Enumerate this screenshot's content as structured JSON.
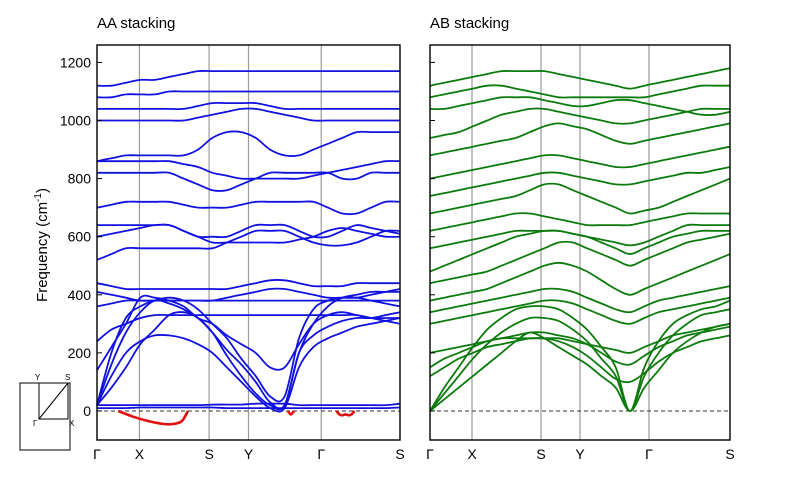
{
  "chart_data": {
    "type": "line",
    "ylabel": "Frequency (cm",
    "ylabel_sup": "-1",
    "ylabel_close": ")",
    "ylim": [
      -100,
      1260
    ],
    "yticks": [
      0,
      200,
      400,
      600,
      800,
      1000,
      1200
    ],
    "kpoints": [
      "Γ",
      "X",
      "S",
      "Y",
      "Γ",
      "S"
    ],
    "inset": {
      "labels": [
        "Y",
        "S",
        "Γ",
        "X"
      ]
    },
    "panels": [
      {
        "title": "AA stacking",
        "color": "#1010e0",
        "imaginary_color": "#e01010",
        "bands": [
          [
            10,
            10,
            10,
            12,
            12,
            12,
            12,
            12,
            12,
            10,
            10,
            10,
            10,
            10,
            10,
            10,
            10,
            10,
            10,
            10,
            10,
            12
          ],
          [
            20,
            20,
            20,
            20,
            20,
            20,
            20,
            20,
            22,
            22,
            22,
            25,
            25,
            25,
            20,
            20,
            20,
            20,
            20,
            20,
            20,
            25
          ],
          [
            20,
            80,
            150,
            230,
            280,
            330,
            340,
            320,
            270,
            190,
            120,
            60,
            20,
            20,
            200,
            260,
            290,
            310,
            320,
            320,
            330,
            340
          ],
          [
            20,
            120,
            200,
            240,
            260,
            260,
            250,
            230,
            200,
            150,
            100,
            50,
            10,
            10,
            150,
            220,
            250,
            270,
            290,
            300,
            310,
            320
          ],
          [
            20,
            160,
            270,
            340,
            380,
            370,
            350,
            320,
            270,
            210,
            160,
            100,
            30,
            20,
            200,
            300,
            360,
            390,
            400,
            410,
            410,
            410
          ],
          [
            20,
            200,
            320,
            360,
            380,
            390,
            380,
            350,
            300,
            250,
            180,
            120,
            50,
            50,
            250,
            350,
            380,
            390,
            390,
            380,
            370,
            360
          ],
          [
            140,
            220,
            300,
            390,
            390,
            380,
            360,
            320,
            300,
            260,
            230,
            200,
            150,
            150,
            230,
            300,
            330,
            340,
            330,
            320,
            310,
            300
          ],
          [
            240,
            280,
            300,
            320,
            330,
            330,
            330,
            330,
            330,
            330,
            330,
            330,
            330,
            330,
            330,
            330,
            330,
            330,
            330,
            320,
            320,
            320
          ],
          [
            360,
            370,
            380,
            380,
            380,
            380,
            380,
            380,
            380,
            380,
            380,
            380,
            380,
            380,
            380,
            380,
            380,
            380,
            380,
            380,
            380,
            380
          ],
          [
            410,
            400,
            390,
            380,
            380,
            380,
            380,
            380,
            380,
            390,
            400,
            410,
            420,
            420,
            410,
            400,
            390,
            390,
            390,
            400,
            410,
            420
          ],
          [
            440,
            430,
            420,
            420,
            420,
            420,
            420,
            420,
            420,
            420,
            430,
            440,
            450,
            450,
            440,
            430,
            430,
            430,
            440,
            440,
            440,
            440
          ],
          [
            520,
            540,
            560,
            560,
            560,
            560,
            560,
            560,
            560,
            580,
            600,
            620,
            620,
            620,
            600,
            580,
            570,
            570,
            580,
            600,
            620,
            620
          ],
          [
            600,
            610,
            620,
            630,
            640,
            640,
            620,
            600,
            580,
            580,
            580,
            580,
            580,
            580,
            590,
            600,
            620,
            630,
            620,
            610,
            600,
            600
          ],
          [
            640,
            640,
            640,
            640,
            640,
            640,
            620,
            600,
            600,
            600,
            620,
            640,
            640,
            640,
            620,
            600,
            600,
            620,
            640,
            630,
            620,
            610
          ],
          [
            700,
            710,
            720,
            720,
            720,
            720,
            710,
            700,
            700,
            700,
            710,
            720,
            720,
            720,
            720,
            720,
            700,
            680,
            680,
            700,
            720,
            720
          ],
          [
            820,
            820,
            820,
            820,
            820,
            820,
            800,
            780,
            760,
            760,
            780,
            800,
            820,
            820,
            820,
            820,
            820,
            800,
            800,
            820,
            820,
            820
          ],
          [
            860,
            860,
            860,
            860,
            860,
            860,
            850,
            840,
            820,
            810,
            800,
            800,
            800,
            800,
            800,
            810,
            820,
            830,
            840,
            850,
            860,
            860
          ],
          [
            860,
            870,
            880,
            880,
            880,
            880,
            880,
            900,
            940,
            960,
            960,
            940,
            900,
            880,
            880,
            900,
            920,
            940,
            960,
            960,
            960,
            960
          ],
          [
            1000,
            1000,
            1000,
            1000,
            1000,
            1000,
            1000,
            1010,
            1020,
            1030,
            1040,
            1040,
            1030,
            1020,
            1010,
            1000,
            1000,
            1000,
            1000,
            1000,
            1000,
            1000
          ],
          [
            1040,
            1040,
            1040,
            1040,
            1040,
            1040,
            1040,
            1050,
            1060,
            1060,
            1060,
            1060,
            1050,
            1040,
            1040,
            1040,
            1040,
            1040,
            1040,
            1040,
            1040,
            1040
          ],
          [
            1080,
            1080,
            1090,
            1090,
            1090,
            1100,
            1100,
            1100,
            1100,
            1100,
            1100,
            1100,
            1100,
            1100,
            1100,
            1100,
            1100,
            1100,
            1100,
            1100,
            1100,
            1100
          ],
          [
            1120,
            1120,
            1130,
            1140,
            1140,
            1150,
            1160,
            1170,
            1170,
            1170,
            1170,
            1170,
            1170,
            1170,
            1170,
            1170,
            1170,
            1170,
            1170,
            1170,
            1170,
            1170
          ]
        ],
        "imaginary": [
          {
            "x": [
              0.07,
              0.12,
              0.17,
              0.22,
              0.25,
              0.28,
              0.3
            ],
            "y": [
              0,
              -20,
              -35,
              -45,
              -45,
              -35,
              0
            ]
          },
          {
            "x": [
              0.63,
              0.64,
              0.65
            ],
            "y": [
              0,
              -12,
              0
            ]
          },
          {
            "x": [
              0.79,
              0.8,
              0.81,
              0.82,
              0.83,
              0.84,
              0.85
            ],
            "y": [
              0,
              -12,
              -15,
              -12,
              -15,
              -12,
              0
            ]
          }
        ]
      },
      {
        "title": "AB stacking",
        "color": "#0c7a0c",
        "imaginary_color": "#e01010",
        "bands": [
          [
            0,
            40,
            80,
            120,
            160,
            200,
            240,
            270,
            250,
            220,
            190,
            160,
            120,
            80,
            0,
            80,
            140,
            200,
            240,
            270,
            290,
            300
          ],
          [
            0,
            60,
            120,
            180,
            230,
            270,
            300,
            320,
            320,
            310,
            280,
            240,
            180,
            120,
            0,
            120,
            200,
            260,
            300,
            330,
            340,
            350
          ],
          [
            0,
            80,
            150,
            220,
            280,
            320,
            350,
            360,
            360,
            350,
            320,
            280,
            220,
            150,
            0,
            150,
            240,
            300,
            330,
            350,
            360,
            380
          ],
          [
            120,
            150,
            180,
            200,
            220,
            230,
            240,
            250,
            250,
            240,
            220,
            190,
            150,
            110,
            100,
            130,
            170,
            200,
            220,
            240,
            250,
            260
          ],
          [
            150,
            180,
            200,
            220,
            240,
            250,
            260,
            270,
            270,
            260,
            250,
            230,
            200,
            170,
            160,
            190,
            220,
            240,
            260,
            270,
            280,
            290
          ],
          [
            200,
            210,
            220,
            230,
            240,
            250,
            250,
            250,
            250,
            250,
            240,
            230,
            220,
            210,
            200,
            220,
            240,
            260,
            270,
            280,
            290,
            300
          ],
          [
            300,
            310,
            320,
            330,
            340,
            350,
            360,
            370,
            380,
            380,
            370,
            350,
            330,
            310,
            300,
            320,
            340,
            350,
            360,
            370,
            380,
            390
          ],
          [
            340,
            350,
            360,
            370,
            380,
            390,
            400,
            410,
            420,
            420,
            410,
            390,
            370,
            350,
            340,
            360,
            380,
            390,
            400,
            410,
            420,
            430
          ],
          [
            380,
            390,
            400,
            410,
            420,
            440,
            460,
            480,
            500,
            510,
            500,
            480,
            450,
            420,
            400,
            420,
            440,
            460,
            480,
            500,
            520,
            540
          ],
          [
            440,
            450,
            460,
            470,
            480,
            500,
            520,
            540,
            560,
            580,
            580,
            560,
            540,
            520,
            500,
            520,
            540,
            560,
            580,
            590,
            600,
            610
          ],
          [
            480,
            500,
            520,
            540,
            560,
            580,
            600,
            610,
            620,
            620,
            610,
            600,
            580,
            560,
            540,
            560,
            580,
            600,
            610,
            620,
            620,
            620
          ],
          [
            560,
            570,
            580,
            590,
            600,
            610,
            620,
            620,
            620,
            620,
            610,
            600,
            590,
            580,
            570,
            580,
            600,
            620,
            640,
            640,
            640,
            640
          ],
          [
            620,
            630,
            640,
            650,
            660,
            670,
            680,
            680,
            670,
            660,
            650,
            640,
            640,
            640,
            640,
            650,
            660,
            670,
            680,
            680,
            680,
            680
          ],
          [
            680,
            690,
            700,
            710,
            720,
            730,
            740,
            760,
            780,
            780,
            760,
            740,
            720,
            700,
            680,
            690,
            700,
            720,
            740,
            760,
            780,
            800
          ],
          [
            740,
            750,
            760,
            770,
            780,
            790,
            800,
            810,
            820,
            820,
            810,
            800,
            790,
            780,
            780,
            790,
            800,
            810,
            820,
            820,
            830,
            840
          ],
          [
            800,
            810,
            820,
            830,
            840,
            850,
            860,
            870,
            880,
            880,
            870,
            860,
            850,
            840,
            840,
            850,
            860,
            870,
            880,
            890,
            900,
            910
          ],
          [
            880,
            890,
            900,
            910,
            920,
            930,
            940,
            960,
            980,
            990,
            980,
            970,
            950,
            930,
            920,
            930,
            940,
            950,
            960,
            970,
            980,
            990
          ],
          [
            940,
            950,
            960,
            980,
            1000,
            1020,
            1030,
            1040,
            1040,
            1030,
            1020,
            1010,
            1000,
            990,
            990,
            1000,
            1010,
            1020,
            1030,
            1040,
            1040,
            1040
          ],
          [
            1040,
            1040,
            1050,
            1060,
            1070,
            1080,
            1080,
            1080,
            1070,
            1060,
            1050,
            1050,
            1060,
            1070,
            1070,
            1060,
            1050,
            1040,
            1030,
            1020,
            1020,
            1030
          ],
          [
            1080,
            1090,
            1100,
            1110,
            1120,
            1120,
            1110,
            1100,
            1090,
            1080,
            1080,
            1080,
            1080,
            1080,
            1080,
            1080,
            1090,
            1100,
            1110,
            1120,
            1120,
            1120
          ],
          [
            1120,
            1130,
            1140,
            1150,
            1160,
            1170,
            1170,
            1170,
            1170,
            1160,
            1150,
            1140,
            1130,
            1120,
            1110,
            1120,
            1130,
            1140,
            1150,
            1160,
            1170,
            1180
          ]
        ],
        "imaginary": []
      }
    ]
  }
}
